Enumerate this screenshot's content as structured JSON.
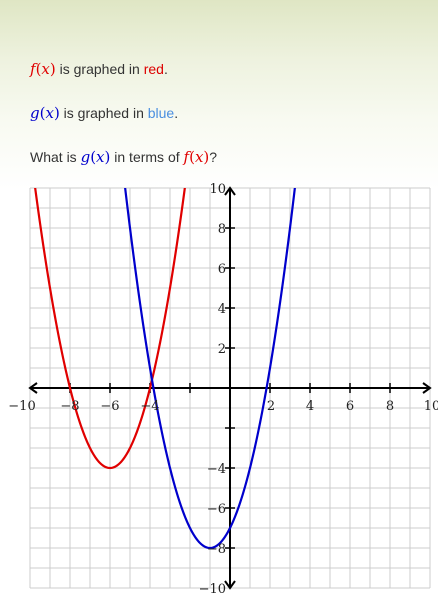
{
  "prompt": {
    "line1": {
      "func": "f",
      "var": "x",
      "mid": " is graphed in ",
      "color_word": "red",
      "end": "."
    },
    "line2": {
      "func": "g",
      "var": "x",
      "mid": " is graphed in ",
      "color_word": "blue",
      "end": "."
    },
    "line3": {
      "start": "What is ",
      "func_g": "g",
      "func_f": "f",
      "var": "x",
      "mid": " in terms of ",
      "end": "?"
    }
  },
  "colors": {
    "red": "#e00000",
    "blue": "#0000cc",
    "light_blue_word": "#4a8fe0",
    "red_word": "#dd0000"
  },
  "chart_data": {
    "type": "line",
    "xlim": [
      -10,
      10
    ],
    "ylim": [
      -10,
      10
    ],
    "grid": true,
    "x_ticks": [
      "−10",
      "−8",
      "−6",
      "−4",
      "2",
      "4",
      "6",
      "8",
      "10"
    ],
    "y_ticks": [
      "10",
      "8",
      "6",
      "4",
      "2",
      "−4",
      "−6",
      "−8",
      "−10"
    ],
    "series": [
      {
        "color": "red",
        "vertex": [
          -6,
          -4
        ],
        "a": 1
      },
      {
        "color": "blue",
        "vertex": [
          -1,
          -8
        ],
        "a": 1
      }
    ]
  }
}
